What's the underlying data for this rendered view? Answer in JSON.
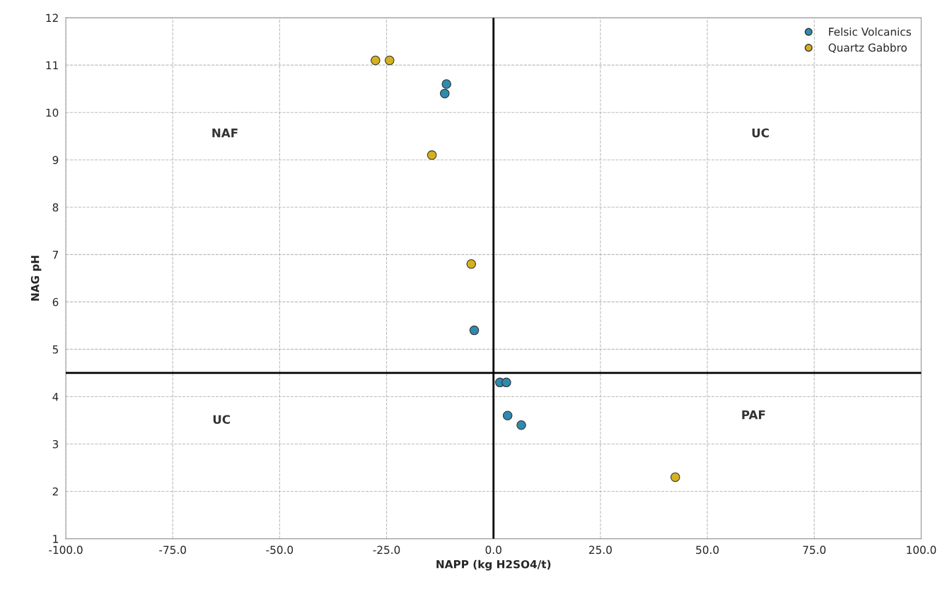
{
  "chart_data": {
    "type": "scatter",
    "xlabel": "NAPP (kg H2SO4/t)",
    "ylabel": "NAG pH",
    "series": [
      {
        "name": "Felsic Volcanics",
        "color": "#2e8bb0",
        "x": [
          -11.0,
          -11.4,
          -4.5,
          1.5,
          3.0,
          3.3,
          6.5
        ],
        "values": [
          10.6,
          10.4,
          5.4,
          4.3,
          4.3,
          3.6,
          3.4
        ]
      },
      {
        "name": "Quartz Gabbro",
        "color": "#d4b11f",
        "x": [
          -27.6,
          -24.3,
          -14.4,
          -5.2,
          42.5
        ],
        "values": [
          11.1,
          11.1,
          9.1,
          6.8,
          2.3
        ]
      }
    ],
    "xlim": [
      -100,
      100
    ],
    "xticks": [
      {
        "value": -100,
        "label": "-100.0"
      },
      {
        "value": -75,
        "label": "-75.0"
      },
      {
        "value": -50,
        "label": "-50.0"
      },
      {
        "value": -25,
        "label": "-25.0"
      },
      {
        "value": 0,
        "label": "0.0"
      },
      {
        "value": 25,
        "label": "25.0"
      },
      {
        "value": 50,
        "label": "50.0"
      },
      {
        "value": 75,
        "label": "75.0"
      },
      {
        "value": 100,
        "label": "100.0"
      }
    ],
    "ylim": [
      1,
      12
    ],
    "yticks": [
      1,
      2,
      3,
      4,
      5,
      6,
      7,
      8,
      9,
      10,
      11,
      12
    ],
    "ref_lines": [
      {
        "axis": "y",
        "value": 4.5,
        "color": "#000000"
      },
      {
        "axis": "x",
        "value": 0,
        "color": "#000000"
      }
    ],
    "annotations": [
      "NAF",
      "UC",
      "UC",
      "PAF"
    ],
    "grid": true,
    "legend": "top right",
    "marker": "circle"
  }
}
